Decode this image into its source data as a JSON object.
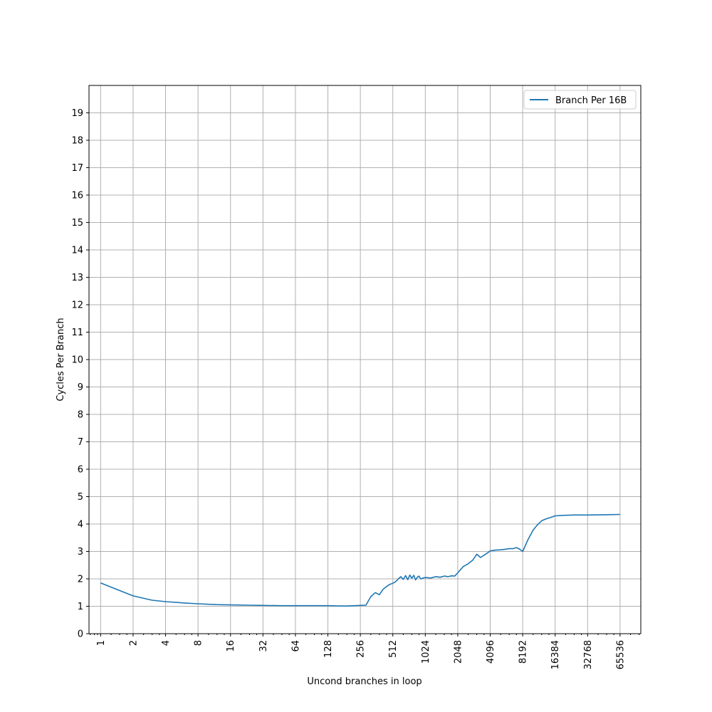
{
  "chart_data": {
    "type": "line",
    "title": "",
    "xlabel": "Uncond branches in loop",
    "ylabel": "Cycles Per Branch",
    "x_scale": "log2",
    "xlim": [
      0.78,
      102000
    ],
    "ylim": [
      0,
      20
    ],
    "grid": true,
    "legend_position": "top-right",
    "x_ticks": [
      "1",
      "2",
      "4",
      "8",
      "16",
      "32",
      "64",
      "128",
      "256",
      "512",
      "1024",
      "2048",
      "4096",
      "8192",
      "16384",
      "32768",
      "65536"
    ],
    "y_ticks": [
      "0",
      "1",
      "2",
      "3",
      "4",
      "5",
      "6",
      "7",
      "8",
      "9",
      "10",
      "11",
      "12",
      "13",
      "14",
      "15",
      "16",
      "17",
      "18",
      "19"
    ],
    "series": [
      {
        "name": "Branch Per 16B",
        "color": "#1f77b4",
        "x": [
          1,
          2,
          3,
          4,
          6,
          8,
          12,
          16,
          24,
          32,
          48,
          64,
          96,
          128,
          160,
          192,
          224,
          256,
          288,
          320,
          352,
          384,
          416,
          448,
          480,
          512,
          544,
          576,
          608,
          640,
          672,
          704,
          736,
          768,
          800,
          832,
          864,
          896,
          928,
          960,
          1024,
          1152,
          1280,
          1408,
          1536,
          1664,
          1792,
          1920,
          2048,
          2304,
          2560,
          2816,
          3072,
          3328,
          3584,
          3840,
          4096,
          4608,
          5120,
          5632,
          6144,
          6656,
          7168,
          7680,
          8192,
          9216,
          10240,
          11264,
          12288,
          13312,
          14336,
          15360,
          16384,
          20480,
          24576,
          32768,
          49152,
          65536
        ],
        "values": [
          1.85,
          1.38,
          1.22,
          1.17,
          1.12,
          1.09,
          1.06,
          1.05,
          1.04,
          1.03,
          1.02,
          1.02,
          1.02,
          1.02,
          1.01,
          1.01,
          1.02,
          1.03,
          1.04,
          1.35,
          1.5,
          1.42,
          1.62,
          1.72,
          1.8,
          1.84,
          1.9,
          2.0,
          2.08,
          1.98,
          2.12,
          1.97,
          2.14,
          2.02,
          2.13,
          1.96,
          2.06,
          2.1,
          2.0,
          2.02,
          2.05,
          2.03,
          2.08,
          2.06,
          2.1,
          2.08,
          2.11,
          2.1,
          2.22,
          2.45,
          2.55,
          2.68,
          2.9,
          2.78,
          2.86,
          2.94,
          3.02,
          3.05,
          3.06,
          3.08,
          3.1,
          3.1,
          3.14,
          3.08,
          3.0,
          3.45,
          3.78,
          3.98,
          4.12,
          4.18,
          4.22,
          4.26,
          4.3,
          4.32,
          4.33,
          4.33,
          4.34,
          4.35
        ]
      }
    ]
  }
}
